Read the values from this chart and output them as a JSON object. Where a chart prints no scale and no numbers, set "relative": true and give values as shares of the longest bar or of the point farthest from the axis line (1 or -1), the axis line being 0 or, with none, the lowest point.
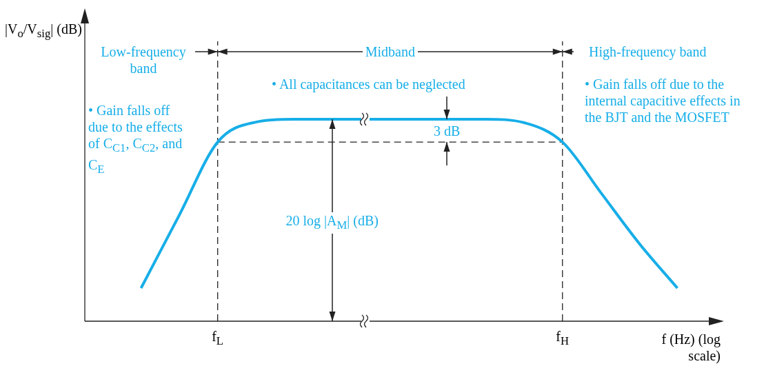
{
  "chart_data": {
    "type": "line",
    "relative": true,
    "xlabel": "f (Hz) (log scale)",
    "marker": "none",
    "categories": [
      null,
      null,
      null,
      "f$_{L}$",
      null,
      null,
      null,
      null,
      null,
      null,
      null,
      null,
      "f$_{H}$",
      null,
      null,
      null,
      null
    ],
    "series": [
      {
        "color": "#17aee8",
        "values": [
          null,
          0.164,
          0.526,
          0.887,
          0.986,
          1,
          1,
          1,
          1,
          1,
          1,
          0.983,
          0.887,
          0.637,
          0.386,
          0.164,
          null
        ]
      }
    ],
    "ref_lines": [
      {
        "axis": "x",
        "value": "f$_{L}$",
        "line_style": "dashed"
      },
      {
        "axis": "x",
        "value": "f$_{H}$",
        "line_style": "dashed"
      },
      {
        "axis": "y",
        "value": 0.887,
        "line_style": "dashed"
      }
    ],
    "annotations": [
      "Low-frequency band",
      "Midband",
      "High-frequency band",
      "• All capacitances can be neglected",
      "• Gain falls off due to the effects of C$_{C1}$, C$_{C2}$, and C$_{E}$",
      "• Gain falls off due to the internal capacitive effects in the BJT and the MOSFET",
      "3 dB",
      "20 log |A$_{M}$| (dB)",
      "|V$_{o}$/V$_{sig}$| (dB)"
    ]
  }
}
